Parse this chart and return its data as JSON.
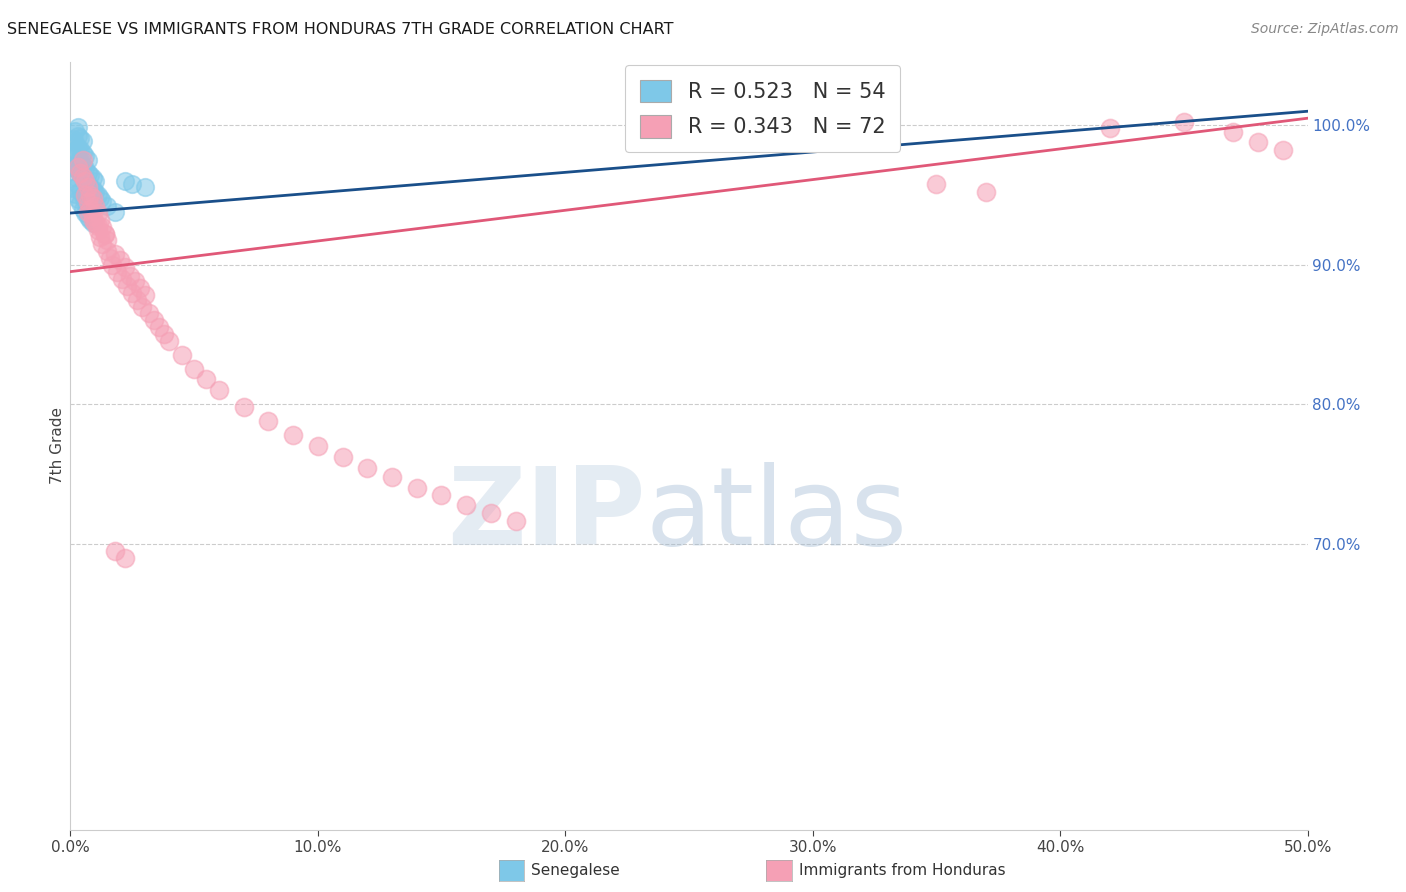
{
  "title": "SENEGALESE VS IMMIGRANTS FROM HONDURAS 7TH GRADE CORRELATION CHART",
  "source": "Source: ZipAtlas.com",
  "ylabel": "7th Grade",
  "legend_r_blue": "0.523",
  "legend_n_blue": "54",
  "legend_r_pink": "0.343",
  "legend_n_pink": "72",
  "xlim": [
    0.0,
    0.5
  ],
  "ylim": [
    0.495,
    1.045
  ],
  "blue_color": "#7ec8e8",
  "pink_color": "#f5a0b5",
  "blue_line_color": "#1a4f8a",
  "pink_line_color": "#e05878",
  "grid_color": "#cccccc",
  "blue_trend": [
    0.0,
    0.937,
    0.5,
    1.01
  ],
  "pink_trend": [
    0.0,
    0.895,
    0.5,
    1.005
  ],
  "blue_x": [
    0.001,
    0.001,
    0.001,
    0.002,
    0.002,
    0.002,
    0.002,
    0.003,
    0.003,
    0.003,
    0.003,
    0.003,
    0.004,
    0.004,
    0.004,
    0.004,
    0.005,
    0.005,
    0.005,
    0.005,
    0.006,
    0.006,
    0.006,
    0.007,
    0.007,
    0.007,
    0.008,
    0.008,
    0.009,
    0.009,
    0.01,
    0.01,
    0.011,
    0.012,
    0.013,
    0.015,
    0.018,
    0.022,
    0.025,
    0.03,
    0.001,
    0.002,
    0.002,
    0.003,
    0.003,
    0.004,
    0.004,
    0.005,
    0.005,
    0.006,
    0.006,
    0.007,
    0.008,
    0.009
  ],
  "blue_y": [
    0.97,
    0.98,
    0.99,
    0.972,
    0.982,
    0.988,
    0.996,
    0.968,
    0.975,
    0.984,
    0.992,
    0.999,
    0.965,
    0.974,
    0.983,
    0.991,
    0.963,
    0.971,
    0.98,
    0.989,
    0.96,
    0.969,
    0.978,
    0.958,
    0.966,
    0.975,
    0.956,
    0.964,
    0.954,
    0.962,
    0.952,
    0.96,
    0.95,
    0.948,
    0.946,
    0.942,
    0.938,
    0.96,
    0.958,
    0.956,
    0.955,
    0.951,
    0.963,
    0.947,
    0.957,
    0.944,
    0.953,
    0.94,
    0.949,
    0.937,
    0.946,
    0.934,
    0.932,
    0.93
  ],
  "pink_x": [
    0.003,
    0.004,
    0.005,
    0.005,
    0.006,
    0.006,
    0.007,
    0.007,
    0.008,
    0.008,
    0.009,
    0.009,
    0.01,
    0.01,
    0.011,
    0.011,
    0.012,
    0.012,
    0.013,
    0.013,
    0.014,
    0.015,
    0.015,
    0.016,
    0.017,
    0.018,
    0.019,
    0.02,
    0.021,
    0.022,
    0.023,
    0.024,
    0.025,
    0.026,
    0.027,
    0.028,
    0.029,
    0.03,
    0.032,
    0.034,
    0.036,
    0.038,
    0.04,
    0.045,
    0.05,
    0.055,
    0.06,
    0.07,
    0.08,
    0.09,
    0.1,
    0.11,
    0.12,
    0.13,
    0.14,
    0.15,
    0.16,
    0.17,
    0.18,
    0.35,
    0.37,
    0.42,
    0.45,
    0.47,
    0.48,
    0.49,
    0.007,
    0.009,
    0.011,
    0.014,
    0.018,
    0.022
  ],
  "pink_y": [
    0.97,
    0.966,
    0.963,
    0.975,
    0.95,
    0.96,
    0.945,
    0.956,
    0.94,
    0.95,
    0.935,
    0.948,
    0.93,
    0.942,
    0.925,
    0.937,
    0.92,
    0.932,
    0.915,
    0.927,
    0.922,
    0.91,
    0.918,
    0.905,
    0.9,
    0.908,
    0.895,
    0.903,
    0.89,
    0.898,
    0.885,
    0.892,
    0.88,
    0.888,
    0.875,
    0.883,
    0.87,
    0.878,
    0.865,
    0.86,
    0.855,
    0.85,
    0.845,
    0.835,
    0.825,
    0.818,
    0.81,
    0.798,
    0.788,
    0.778,
    0.77,
    0.762,
    0.754,
    0.748,
    0.74,
    0.735,
    0.728,
    0.722,
    0.716,
    0.958,
    0.952,
    0.998,
    1.002,
    0.995,
    0.988,
    0.982,
    0.938,
    0.932,
    0.928,
    0.922,
    0.695,
    0.69
  ]
}
